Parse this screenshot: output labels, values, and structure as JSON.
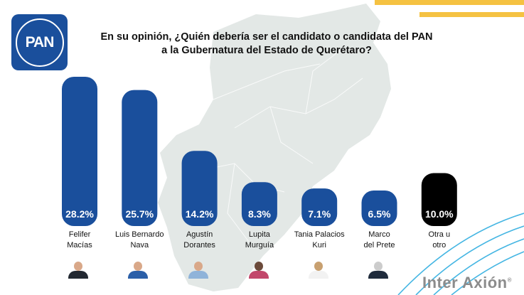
{
  "logo": {
    "text": "PAN"
  },
  "title": "En su opinión, ¿Quién debería ser el candidato o candidata del PAN a la Gubernatura del Estado de Querétaro?",
  "brand": {
    "text": "Inter Axión",
    "mark": "®"
  },
  "colors": {
    "bar": "#1a4f9c",
    "other_bar": "#000000",
    "map": "#e3e8e6",
    "accent_yellow": "#f5c242",
    "accent_blue": "#45b6e3"
  },
  "chart_data": {
    "type": "bar",
    "title": "En su opinión, ¿Quién debería ser el candidato o candidata del PAN a la Gubernatura del Estado de Querétaro?",
    "categories": [
      "Felifer Macías",
      "Luis Bernardo Nava",
      "Agustín Dorantes",
      "Lupita Murguía",
      "Tania Palacios Kuri",
      "Marco del Prete",
      "Otra u otro"
    ],
    "category_lines": [
      [
        "Felifer",
        "Macías"
      ],
      [
        "Luis Bernardo",
        "Nava"
      ],
      [
        "Agustín",
        "Dorantes"
      ],
      [
        "Lupita",
        "Murguía"
      ],
      [
        "Tania Palacios",
        "Kuri"
      ],
      [
        "Marco",
        "del Prete"
      ],
      [
        "Otra u",
        "otro"
      ]
    ],
    "values": [
      28.2,
      25.7,
      14.2,
      8.3,
      7.1,
      6.5,
      10.0
    ],
    "value_labels": [
      "28.2%",
      "25.7%",
      "14.2%",
      "8.3%",
      "7.1%",
      "6.5%",
      "10.0%"
    ],
    "bar_colors": [
      "#1a4f9c",
      "#1a4f9c",
      "#1a4f9c",
      "#1a4f9c",
      "#1a4f9c",
      "#1a4f9c",
      "#000000"
    ],
    "ylim": [
      0,
      28.2
    ],
    "grid": false,
    "legend": "none"
  }
}
